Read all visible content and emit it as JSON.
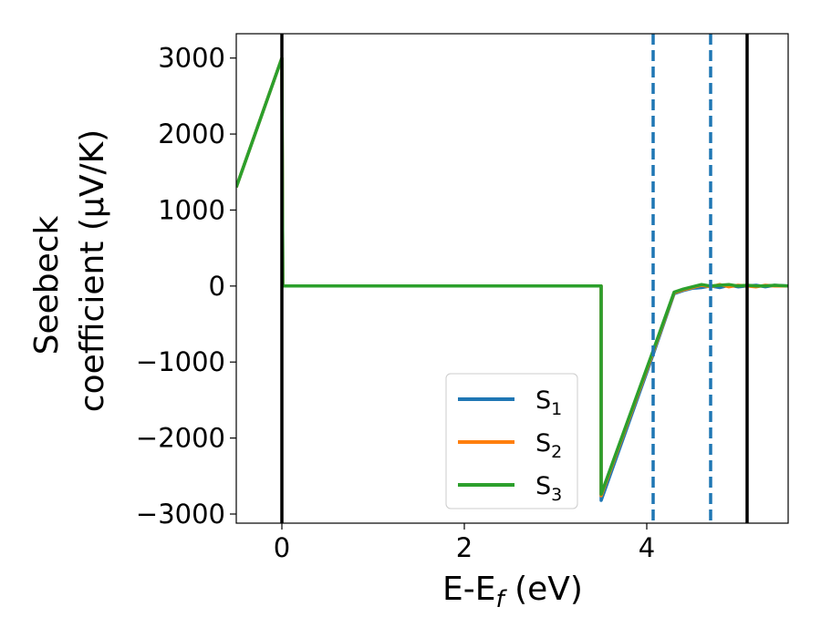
{
  "chart_data": {
    "type": "line",
    "xlabel": "E-E",
    "xlabel_sub": "f",
    "xlabel_unit": " (eV)",
    "ylabel_line1": "Seebeck",
    "ylabel_line2": "coefficient  (μV/K)",
    "xlim": [
      -0.5,
      5.55
    ],
    "ylim": [
      -3120,
      3320
    ],
    "xticks": [
      0,
      2,
      4
    ],
    "xtick_labels": [
      "0",
      "2",
      "4"
    ],
    "yticks": [
      -3000,
      -2000,
      -1000,
      0,
      1000,
      2000,
      3000
    ],
    "ytick_labels": [
      "−3000",
      "−2000",
      "−1000",
      "0",
      "1000",
      "2000",
      "3000"
    ],
    "vlines": [
      {
        "x": 0,
        "color": "#000000",
        "style": "solid"
      },
      {
        "x": 5.1,
        "color": "#000000",
        "style": "solid"
      },
      {
        "x": 4.07,
        "color": "#1f77b4",
        "style": "dashed"
      },
      {
        "x": 4.7,
        "color": "#1f77b4",
        "style": "dashed"
      }
    ],
    "series": [
      {
        "name": "S",
        "sub": "1",
        "color": "#1f77b4",
        "x": [
          -0.5,
          0,
          0.01,
          3.48,
          3.5,
          3.5,
          4.07,
          4.3,
          4.4,
          4.5,
          4.6,
          4.7,
          4.8,
          4.9,
          5.0,
          5.1,
          5.2,
          5.3,
          5.4,
          5.55
        ],
        "y": [
          1300,
          3000,
          0,
          0,
          0,
          -2820,
          -900,
          -100,
          -60,
          -30,
          -20,
          0,
          -20,
          10,
          -10,
          0,
          10,
          -10,
          10,
          0
        ]
      },
      {
        "name": "S",
        "sub": "2",
        "color": "#ff7f0e",
        "x": [
          -0.5,
          0,
          0.01,
          3.48,
          3.5,
          3.5,
          4.07,
          4.3,
          4.4,
          4.5,
          4.6,
          4.7,
          4.8,
          4.9,
          5.0,
          5.1,
          5.2,
          5.3,
          5.4,
          5.55
        ],
        "y": [
          1300,
          3000,
          0,
          0,
          0,
          -2760,
          -870,
          -90,
          -50,
          -20,
          10,
          -10,
          20,
          -10,
          10,
          0,
          -10,
          10,
          0,
          0
        ]
      },
      {
        "name": "S",
        "sub": "3",
        "color": "#2ca02c",
        "x": [
          -0.5,
          0,
          0.01,
          3.48,
          3.5,
          3.5,
          4.07,
          4.3,
          4.4,
          4.5,
          4.6,
          4.7,
          4.8,
          4.9,
          5.0,
          5.1,
          5.2,
          5.3,
          5.4,
          5.55
        ],
        "y": [
          1300,
          3000,
          0,
          0,
          0,
          -2740,
          -850,
          -80,
          -40,
          -10,
          20,
          0,
          10,
          20,
          0,
          10,
          0,
          0,
          10,
          0
        ]
      }
    ],
    "legend": "lower-center"
  }
}
